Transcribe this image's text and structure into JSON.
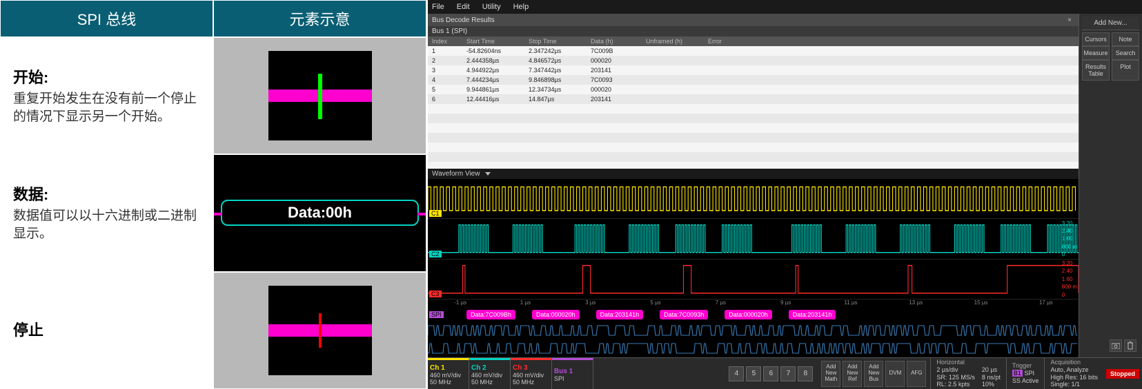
{
  "ref": {
    "hdr_left": "SPI 总线",
    "hdr_right": "元素示意",
    "rows": [
      {
        "title": "开始:",
        "body": "重复开始发生在没有前一个停止的情况下显示另一个开始。",
        "kind": "start"
      },
      {
        "title": "数据:",
        "body": "数据值可以以十六进制或二进制显示。",
        "kind": "data",
        "data_label": "Data:00h"
      },
      {
        "title": "停止",
        "body": "",
        "kind": "stop"
      }
    ],
    "colors": {
      "hdr_bg": "#0a5e73",
      "img_bg": "#b8b8b8",
      "pink": "#ff00ce",
      "green": "#00ff00",
      "red": "#ff0000",
      "teal": "#00d4c4"
    }
  },
  "scope": {
    "menu": [
      "File",
      "Edit",
      "Utility",
      "Help"
    ],
    "decode": {
      "title": "Bus Decode Results",
      "bus": "Bus 1 (SPI)",
      "cols": [
        "Index",
        "Start Time",
        "Stop Time",
        "Data (h)",
        "Unframed (h)",
        "Error"
      ],
      "rows": [
        {
          "i": "1",
          "st": "-54.82604ns",
          "sp": "2.347242µs",
          "d": "7C009B",
          "u": "",
          "e": ""
        },
        {
          "i": "2",
          "st": "2.444358µs",
          "sp": "4.846572µs",
          "d": "000020",
          "u": "",
          "e": ""
        },
        {
          "i": "3",
          "st": "4.944922µs",
          "sp": "7.347442µs",
          "d": "203141",
          "u": "",
          "e": ""
        },
        {
          "i": "4",
          "st": "7.444234µs",
          "sp": "9.846898µs",
          "d": "7C0093",
          "u": "",
          "e": ""
        },
        {
          "i": "5",
          "st": "9.944861µs",
          "sp": "12.34734µs",
          "d": "000020",
          "u": "",
          "e": ""
        },
        {
          "i": "6",
          "st": "12.44416µs",
          "sp": "14.847µs",
          "d": "203141",
          "u": "",
          "e": ""
        }
      ]
    },
    "waveform_title": "Waveform View",
    "channels": [
      {
        "tag": "C1",
        "color": "#ffe600",
        "tag_color": "#ffe600",
        "kind": "clock",
        "right_labels": []
      },
      {
        "tag": "C2",
        "color": "#00d4c4",
        "tag_color": "#00d4c4",
        "kind": "digital-burst",
        "right_labels": [
          "3.20",
          "2.40",
          "1.60",
          "800 m",
          "0"
        ]
      },
      {
        "tag": "C3",
        "color": "#ff2a2a",
        "tag_color": "#ff2a2a",
        "kind": "digital-sparse",
        "right_labels": [
          "3.20",
          "2.40",
          "1.60",
          "800 m",
          "0"
        ]
      }
    ],
    "time_ticks": [
      "-1 µs",
      "1 µs",
      "3 µs",
      "5 µs",
      "7 µs",
      "9 µs",
      "11 µs",
      "13 µs",
      "15 µs",
      "17 µs"
    ],
    "bus": {
      "tag": "SPI",
      "color": "#b34dd6",
      "packets": [
        "Data:7C009Bh",
        "Data:000020h",
        "Data:203141h",
        "Data:7C0093h",
        "Data:000020h",
        "Data:203141h"
      ]
    },
    "side": {
      "add_new": "Add New...",
      "rows": [
        [
          "Cursors",
          "Note"
        ],
        [
          "Measure",
          "Search"
        ],
        [
          "Results Table",
          "Plot"
        ]
      ]
    },
    "bottom": {
      "ch_btns": [
        {
          "nm": "Ch 1",
          "l1": "460 mV/div",
          "l2": "50 MHz",
          "color": "#ffe600"
        },
        {
          "nm": "Ch 2",
          "l1": "460 mV/div",
          "l2": "50 MHz",
          "color": "#00d4c4"
        },
        {
          "nm": "Ch 3",
          "l1": "460 mV/div",
          "l2": "50 MHz",
          "color": "#ff2a2a"
        },
        {
          "nm": "Bus 1",
          "l1": "SPI",
          "l2": "",
          "color": "#b34dd6"
        }
      ],
      "num_btns": [
        "4",
        "5",
        "6",
        "7",
        "8"
      ],
      "add_btns": [
        "Add New Math",
        "Add New Ref",
        "Add New Bus",
        "DVM",
        "AFG"
      ],
      "horiz": {
        "title": "Horizontal",
        "l1": "2 µs/div",
        "l2": "SR: 125 MS/s",
        "l3": "RL: 2.5 kpts",
        "r1": "20 µs",
        "r2": "8 ns/pt",
        "r3": "10%"
      },
      "trig": {
        "title": "Trigger",
        "l1": "B1  SPI",
        "l2": "SS Active"
      },
      "acq": {
        "title": "Acquisition",
        "l1": "Auto,   Analyze",
        "l2": "High Res: 16 bits",
        "l3": "Single: 1/1"
      },
      "stopped": "Stopped"
    }
  }
}
